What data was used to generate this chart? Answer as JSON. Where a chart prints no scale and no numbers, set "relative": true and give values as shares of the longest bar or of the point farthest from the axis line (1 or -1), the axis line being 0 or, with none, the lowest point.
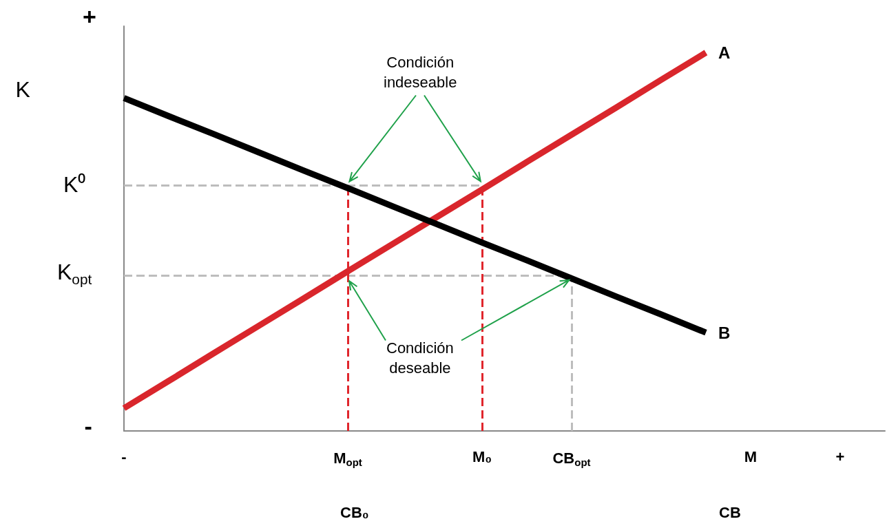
{
  "chart_data": {
    "type": "line",
    "relative": true,
    "legend": false,
    "grid": false,
    "marker": "none",
    "categories": [
      "-",
      null,
      null,
      null,
      null,
      "M$_{opt}$",
      null,
      null,
      "M₀",
      null,
      "CB$_{opt}$",
      null,
      null,
      null,
      "M",
      null,
      "+",
      null
    ],
    "series": [
      {
        "name": "A",
        "color": "#d9262c",
        "values": [
          0.06,
          0.132,
          0.205,
          0.277,
          0.349,
          0.422,
          0.494,
          0.566,
          0.638,
          0.711,
          0.783,
          0.855,
          0.928,
          1,
          null,
          null,
          null,
          null
        ]
      },
      {
        "name": "B",
        "color": "#000000",
        "values": [
          0.88,
          0.832,
          0.785,
          0.737,
          0.689,
          0.642,
          0.594,
          0.546,
          0.498,
          0.451,
          0.403,
          0.355,
          0.308,
          0.26,
          null,
          null,
          null,
          null
        ]
      }
    ],
    "ref_lines": [
      {
        "axis": "y",
        "value": 0.65,
        "label": "K⁰",
        "color": "#bdbdbd",
        "line_style": "dashed"
      },
      {
        "axis": "y",
        "value": 0.41,
        "label": "K$_{opt}$",
        "color": "#bdbdbd",
        "line_style": "dashed"
      },
      {
        "axis": "x",
        "value": "M$_{opt}$",
        "color": "#e0262c",
        "line_style": "dashed"
      },
      {
        "axis": "x",
        "value": "M₀",
        "color": "#e0262c",
        "line_style": "dashed"
      },
      {
        "axis": "x",
        "value": "CB$_{opt}$",
        "color": "#bdbdbd",
        "line_style": "dashed"
      }
    ],
    "annotations": [
      "Condición\nindeseable",
      "Condición\ndeseable",
      "K",
      "+",
      "-",
      "CB₀",
      "CB"
    ]
  }
}
